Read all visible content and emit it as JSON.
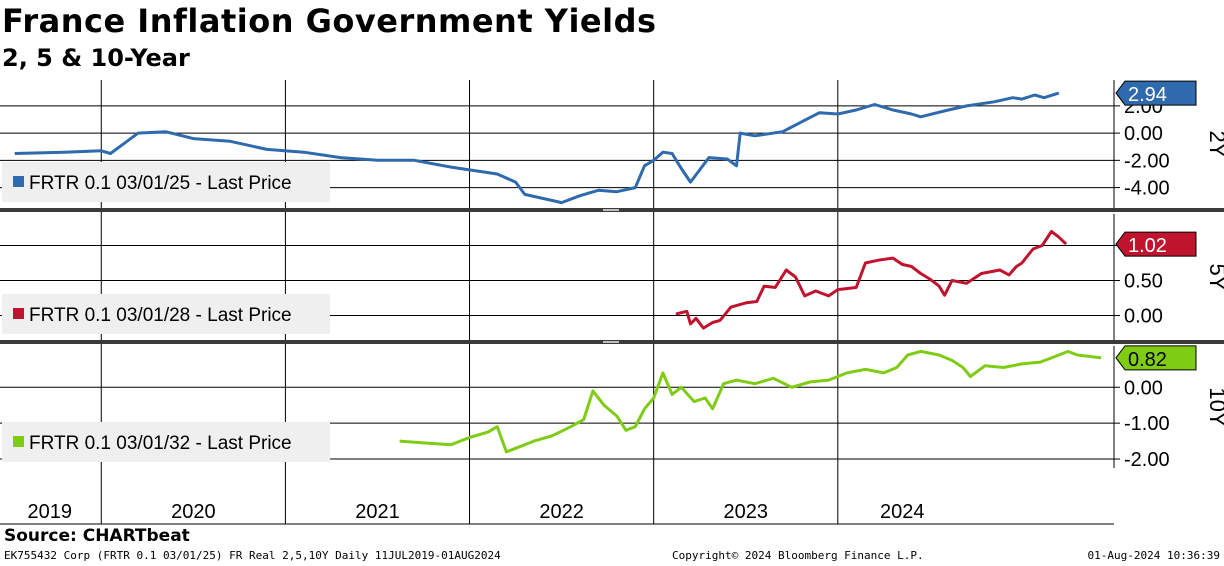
{
  "header": {
    "title": "France Inflation Government Yields",
    "subtitle": "2, 5 & 10-Year"
  },
  "footer": {
    "source": "Source: CHARTbeat",
    "left": "EK755432 Corp (FRTR 0.1 03/01/25) FR Real 2,5,10Y  Daily 11JUL2019-01AUG2024",
    "middle": "Copyright© 2024 Bloomberg Finance L.P.",
    "right": "01-Aug-2024 10:36:39"
  },
  "chart_data": [
    {
      "type": "line",
      "panel_label": "2Y",
      "series": [
        {
          "name": "FRTR 0.1 03/01/25 - Last Price",
          "color": "#2e6aad",
          "last_value": "2.94",
          "points": [
            [
              2019.53,
              -1.5
            ],
            [
              2019.8,
              -1.4
            ],
            [
              2020.0,
              -1.3
            ],
            [
              2020.05,
              -1.5
            ],
            [
              2020.2,
              0.0
            ],
            [
              2020.35,
              0.1
            ],
            [
              2020.5,
              -0.4
            ],
            [
              2020.7,
              -0.6
            ],
            [
              2020.9,
              -1.2
            ],
            [
              2021.1,
              -1.4
            ],
            [
              2021.3,
              -1.8
            ],
            [
              2021.5,
              -2.0
            ],
            [
              2021.7,
              -2.0
            ],
            [
              2021.9,
              -2.5
            ],
            [
              2022.0,
              -2.7
            ],
            [
              2022.15,
              -3.0
            ],
            [
              2022.25,
              -3.6
            ],
            [
              2022.3,
              -4.5
            ],
            [
              2022.4,
              -4.8
            ],
            [
              2022.5,
              -5.1
            ],
            [
              2022.6,
              -4.6
            ],
            [
              2022.7,
              -4.2
            ],
            [
              2022.8,
              -4.3
            ],
            [
              2022.9,
              -4.0
            ],
            [
              2022.95,
              -2.4
            ],
            [
              2023.0,
              -2.0
            ],
            [
              2023.05,
              -1.4
            ],
            [
              2023.1,
              -1.5
            ],
            [
              2023.15,
              -2.6
            ],
            [
              2023.2,
              -3.6
            ],
            [
              2023.3,
              -1.8
            ],
            [
              2023.4,
              -1.9
            ],
            [
              2023.45,
              -2.4
            ],
            [
              2023.47,
              0.0
            ],
            [
              2023.55,
              -0.2
            ],
            [
              2023.7,
              0.1
            ],
            [
              2023.8,
              0.8
            ],
            [
              2023.9,
              1.5
            ],
            [
              2024.0,
              1.4
            ],
            [
              2024.1,
              1.7
            ],
            [
              2024.2,
              2.1
            ],
            [
              2024.3,
              1.7
            ],
            [
              2024.4,
              1.4
            ],
            [
              2024.45,
              1.2
            ],
            [
              2024.6,
              1.7
            ],
            [
              2024.7,
              2.0
            ],
            [
              2024.85,
              2.3
            ],
            [
              2024.95,
              2.6
            ],
            [
              2025.0,
              2.5
            ],
            [
              2025.07,
              2.8
            ],
            [
              2025.12,
              2.6
            ],
            [
              2025.2,
              2.94
            ]
          ]
        }
      ],
      "ylim": [
        -5.5,
        3.9
      ],
      "yticks": [
        "2.00",
        "0.00",
        "-2.00",
        "-4.00"
      ],
      "ytick_values": [
        2,
        0,
        -2,
        -4
      ]
    },
    {
      "type": "line",
      "panel_label": "5Y",
      "series": [
        {
          "name": "FRTR 0.1 03/01/28 - Last Price",
          "color": "#c0142e",
          "last_value": "1.02",
          "points": [
            [
              2023.12,
              0.02
            ],
            [
              2023.18,
              0.06
            ],
            [
              2023.2,
              -0.12
            ],
            [
              2023.23,
              -0.04
            ],
            [
              2023.27,
              -0.18
            ],
            [
              2023.32,
              -0.1
            ],
            [
              2023.36,
              -0.07
            ],
            [
              2023.42,
              0.12
            ],
            [
              2023.5,
              0.18
            ],
            [
              2023.56,
              0.2
            ],
            [
              2023.6,
              0.42
            ],
            [
              2023.66,
              0.4
            ],
            [
              2023.72,
              0.65
            ],
            [
              2023.77,
              0.55
            ],
            [
              2023.82,
              0.28
            ],
            [
              2023.88,
              0.35
            ],
            [
              2023.95,
              0.28
            ],
            [
              2024.0,
              0.37
            ],
            [
              2024.1,
              0.4
            ],
            [
              2024.15,
              0.75
            ],
            [
              2024.22,
              0.79
            ],
            [
              2024.3,
              0.82
            ],
            [
              2024.35,
              0.73
            ],
            [
              2024.4,
              0.7
            ],
            [
              2024.45,
              0.6
            ],
            [
              2024.5,
              0.52
            ],
            [
              2024.55,
              0.42
            ],
            [
              2024.58,
              0.29
            ],
            [
              2024.62,
              0.5
            ],
            [
              2024.7,
              0.46
            ],
            [
              2024.78,
              0.6
            ],
            [
              2024.88,
              0.65
            ],
            [
              2024.93,
              0.58
            ],
            [
              2024.97,
              0.7
            ],
            [
              2025.0,
              0.75
            ],
            [
              2025.06,
              0.95
            ],
            [
              2025.11,
              1.0
            ],
            [
              2025.16,
              1.2
            ],
            [
              2025.2,
              1.12
            ],
            [
              2025.24,
              1.02
            ]
          ]
        }
      ],
      "ylim": [
        -0.35,
        1.45
      ],
      "yticks": [
        "1.00",
        "0.50",
        "0.00"
      ],
      "ytick_values": [
        1,
        0.5,
        0
      ]
    },
    {
      "type": "line",
      "panel_label": "10Y",
      "series": [
        {
          "name": "FRTR 0.1 03/01/32 - Last Price",
          "color": "#7fcc14",
          "last_value": "0.82",
          "points": [
            [
              2021.62,
              -1.5
            ],
            [
              2021.75,
              -1.55
            ],
            [
              2021.9,
              -1.6
            ],
            [
              2022.0,
              -1.4
            ],
            [
              2022.1,
              -1.25
            ],
            [
              2022.15,
              -1.1
            ],
            [
              2022.2,
              -1.8
            ],
            [
              2022.25,
              -1.7
            ],
            [
              2022.35,
              -1.5
            ],
            [
              2022.45,
              -1.35
            ],
            [
              2022.55,
              -1.1
            ],
            [
              2022.62,
              -0.9
            ],
            [
              2022.67,
              -0.1
            ],
            [
              2022.73,
              -0.5
            ],
            [
              2022.8,
              -0.8
            ],
            [
              2022.85,
              -1.2
            ],
            [
              2022.9,
              -1.1
            ],
            [
              2022.95,
              -0.6
            ],
            [
              2023.0,
              -0.3
            ],
            [
              2023.05,
              0.4
            ],
            [
              2023.1,
              -0.2
            ],
            [
              2023.15,
              0.0
            ],
            [
              2023.22,
              -0.4
            ],
            [
              2023.28,
              -0.3
            ],
            [
              2023.32,
              -0.6
            ],
            [
              2023.38,
              0.1
            ],
            [
              2023.45,
              0.2
            ],
            [
              2023.55,
              0.1
            ],
            [
              2023.65,
              0.25
            ],
            [
              2023.75,
              0.0
            ],
            [
              2023.85,
              0.15
            ],
            [
              2023.95,
              0.2
            ],
            [
              2024.05,
              0.4
            ],
            [
              2024.15,
              0.5
            ],
            [
              2024.25,
              0.4
            ],
            [
              2024.32,
              0.55
            ],
            [
              2024.38,
              0.9
            ],
            [
              2024.45,
              1.0
            ],
            [
              2024.55,
              0.9
            ],
            [
              2024.62,
              0.75
            ],
            [
              2024.68,
              0.55
            ],
            [
              2024.72,
              0.3
            ],
            [
              2024.8,
              0.6
            ],
            [
              2024.9,
              0.55
            ],
            [
              2025.0,
              0.65
            ],
            [
              2025.1,
              0.7
            ],
            [
              2025.15,
              0.8
            ],
            [
              2025.25,
              1.0
            ],
            [
              2025.3,
              0.9
            ],
            [
              2025.38,
              0.85
            ],
            [
              2025.43,
              0.82
            ]
          ]
        }
      ],
      "ylim": [
        -2.25,
        1.15
      ],
      "yticks": [
        "0.00",
        "-1.00",
        "-2.00"
      ],
      "ytick_values": [
        0,
        -1,
        -2
      ]
    }
  ],
  "x_axis": {
    "range": [
      2019.45,
      2025.5
    ],
    "year_labels": [
      "2019",
      "2020",
      "2021",
      "2022",
      "2023",
      "2024"
    ],
    "year_centers": [
      2019.72,
      2020.5,
      2021.5,
      2022.5,
      2023.5,
      2024.35
    ],
    "year_boundaries": [
      2020.0,
      2021.0,
      2022.0,
      2023.0,
      2024.0
    ]
  }
}
